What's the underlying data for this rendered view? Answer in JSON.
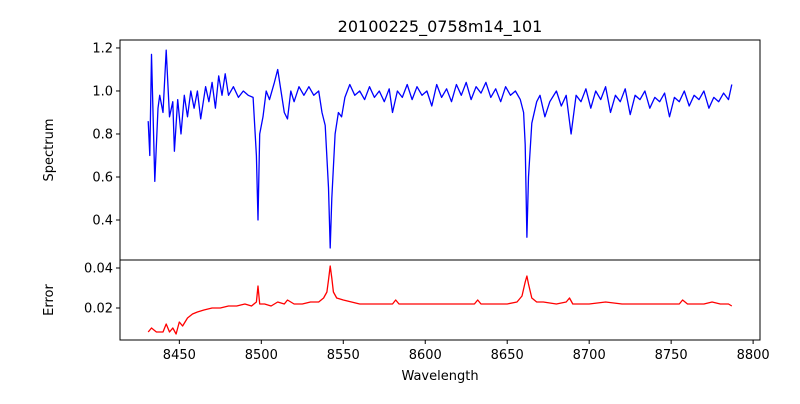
{
  "chart_data": [
    {
      "type": "line",
      "title": "20100225_0758m14_101",
      "xlabel": "",
      "ylabel": "Spectrum",
      "xlim": [
        8413.8,
        8804.2
      ],
      "ylim": [
        0.214,
        1.237
      ],
      "yticks": [
        0.4,
        0.6,
        0.8,
        1.0,
        1.2
      ],
      "ytick_labels": [
        "0.4",
        "0.6",
        "0.8",
        "1.0",
        "1.2"
      ],
      "color": "#0000ff",
      "x": [
        8431,
        8432,
        8433,
        8435,
        8437,
        8438,
        8440,
        8442,
        8444,
        8446,
        8447,
        8449,
        8451,
        8453,
        8455,
        8457,
        8459,
        8461,
        8463,
        8466,
        8468,
        8470,
        8472,
        8474,
        8476,
        8478,
        8480,
        8483,
        8486,
        8489,
        8492,
        8495,
        8497,
        8498,
        8499,
        8501,
        8503,
        8505,
        8508,
        8510,
        8512,
        8514,
        8516,
        8518,
        8520,
        8523,
        8526,
        8529,
        8532,
        8535,
        8537,
        8539,
        8541,
        8542,
        8543,
        8545,
        8547,
        8549,
        8551,
        8554,
        8557,
        8560,
        8563,
        8566,
        8569,
        8572,
        8575,
        8578,
        8580,
        8583,
        8586,
        8589,
        8592,
        8595,
        8598,
        8601,
        8604,
        8607,
        8610,
        8613,
        8616,
        8619,
        8622,
        8625,
        8628,
        8631,
        8634,
        8637,
        8640,
        8643,
        8646,
        8649,
        8652,
        8655,
        8658,
        8660,
        8661,
        8662,
        8663,
        8665,
        8668,
        8670,
        8673,
        8676,
        8680,
        8683,
        8686,
        8689,
        8692,
        8695,
        8698,
        8701,
        8704,
        8707,
        8710,
        8713,
        8716,
        8719,
        8722,
        8725,
        8728,
        8731,
        8734,
        8737,
        8740,
        8743,
        8746,
        8749,
        8752,
        8755,
        8758,
        8761,
        8764,
        8767,
        8770,
        8773,
        8776,
        8779,
        8782,
        8785,
        8787
      ],
      "y": [
        0.86,
        0.7,
        1.17,
        0.58,
        0.92,
        0.98,
        0.9,
        1.19,
        0.88,
        0.95,
        0.72,
        0.96,
        0.8,
        0.98,
        0.88,
        1.0,
        0.92,
        1.0,
        0.87,
        1.02,
        0.95,
        1.04,
        0.92,
        1.07,
        0.98,
        1.08,
        0.98,
        1.02,
        0.97,
        1.0,
        0.98,
        0.97,
        0.7,
        0.4,
        0.8,
        0.88,
        1.0,
        0.96,
        1.04,
        1.1,
        1.0,
        0.9,
        0.87,
        1.0,
        0.95,
        1.02,
        0.98,
        1.02,
        0.98,
        1.0,
        0.9,
        0.84,
        0.55,
        0.27,
        0.5,
        0.8,
        0.9,
        0.88,
        0.97,
        1.03,
        0.98,
        1.0,
        0.96,
        1.02,
        0.97,
        1.0,
        0.95,
        1.01,
        0.9,
        1.0,
        0.97,
        1.03,
        0.96,
        1.02,
        0.98,
        1.0,
        0.93,
        1.03,
        0.97,
        1.01,
        0.95,
        1.03,
        0.98,
        1.04,
        0.96,
        1.02,
        0.99,
        1.04,
        0.97,
        1.01,
        0.95,
        1.02,
        0.98,
        1.0,
        0.96,
        0.9,
        0.75,
        0.32,
        0.6,
        0.85,
        0.95,
        0.98,
        0.88,
        0.95,
        1.0,
        0.93,
        0.98,
        0.8,
        0.98,
        0.95,
        1.01,
        0.92,
        1.0,
        0.96,
        1.02,
        0.9,
        0.98,
        0.95,
        1.01,
        0.89,
        0.98,
        0.96,
        1.0,
        0.92,
        0.97,
        0.95,
        0.99,
        0.88,
        0.97,
        0.95,
        1.0,
        0.93,
        0.98,
        0.96,
        1.0,
        0.92,
        0.97,
        0.95,
        0.99,
        0.96,
        1.03
      ]
    },
    {
      "type": "line",
      "xlabel": "Wavelength",
      "ylabel": "Error",
      "xlim": [
        8413.8,
        8804.2
      ],
      "ylim": [
        0.004,
        0.044
      ],
      "xticks": [
        8450,
        8500,
        8550,
        8600,
        8650,
        8700,
        8750,
        8800
      ],
      "xtick_labels": [
        "8450",
        "8500",
        "8550",
        "8600",
        "8650",
        "8700",
        "8750",
        "8800"
      ],
      "yticks": [
        0.02,
        0.04
      ],
      "ytick_labels": [
        "0.02",
        "0.04"
      ],
      "color": "#ff0000",
      "x": [
        8431,
        8433,
        8436,
        8440,
        8442,
        8444,
        8446,
        8448,
        8450,
        8452,
        8455,
        8458,
        8461,
        8465,
        8470,
        8475,
        8480,
        8485,
        8490,
        8494,
        8497,
        8498,
        8499,
        8502,
        8506,
        8510,
        8514,
        8516,
        8520,
        8525,
        8530,
        8535,
        8538,
        8540,
        8541,
        8542,
        8543,
        8544,
        8546,
        8550,
        8555,
        8560,
        8570,
        8580,
        8582,
        8584,
        8590,
        8600,
        8610,
        8620,
        8630,
        8632,
        8634,
        8640,
        8650,
        8656,
        8659,
        8661,
        8662,
        8663,
        8665,
        8668,
        8672,
        8680,
        8686,
        8688,
        8690,
        8700,
        8710,
        8720,
        8730,
        8740,
        8750,
        8755,
        8757,
        8760,
        8770,
        8775,
        8780,
        8785,
        8787
      ],
      "y": [
        0.008,
        0.01,
        0.008,
        0.008,
        0.012,
        0.008,
        0.01,
        0.007,
        0.013,
        0.011,
        0.015,
        0.017,
        0.018,
        0.019,
        0.02,
        0.02,
        0.021,
        0.021,
        0.022,
        0.021,
        0.023,
        0.031,
        0.022,
        0.022,
        0.021,
        0.023,
        0.022,
        0.024,
        0.022,
        0.022,
        0.023,
        0.023,
        0.025,
        0.028,
        0.034,
        0.041,
        0.035,
        0.028,
        0.025,
        0.024,
        0.023,
        0.022,
        0.022,
        0.022,
        0.024,
        0.022,
        0.022,
        0.022,
        0.022,
        0.022,
        0.022,
        0.024,
        0.022,
        0.022,
        0.022,
        0.023,
        0.026,
        0.033,
        0.036,
        0.032,
        0.025,
        0.023,
        0.023,
        0.022,
        0.023,
        0.025,
        0.022,
        0.022,
        0.023,
        0.022,
        0.022,
        0.022,
        0.022,
        0.022,
        0.024,
        0.022,
        0.022,
        0.023,
        0.022,
        0.022,
        0.021
      ]
    }
  ]
}
